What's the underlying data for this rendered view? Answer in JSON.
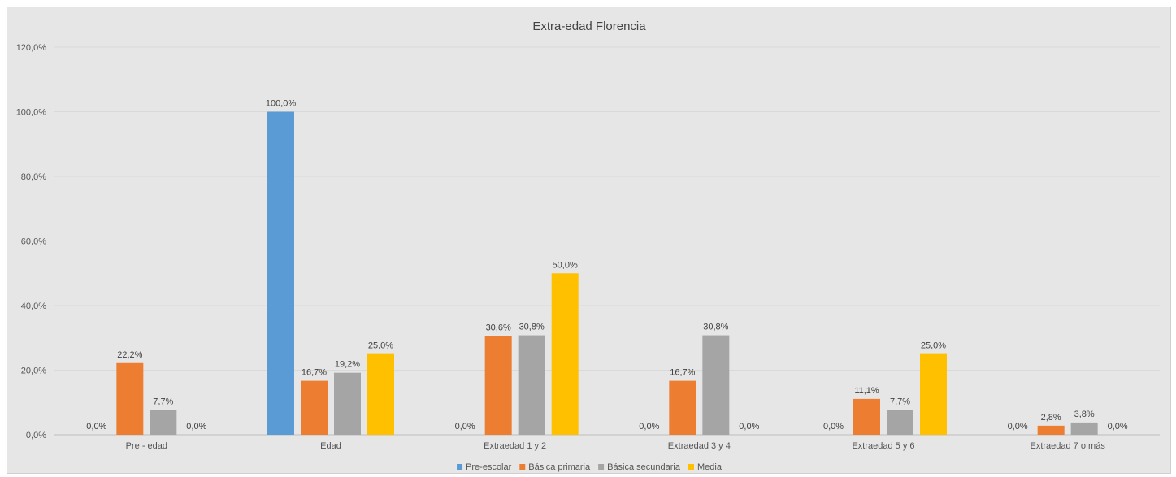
{
  "chart_data": {
    "type": "bar",
    "title": "Extra-edad Florencia",
    "xlabel": "",
    "ylabel": "",
    "ylim": [
      0,
      120
    ],
    "yticks": [
      "0,0%",
      "20,0%",
      "40,0%",
      "60,0%",
      "80,0%",
      "100,0%",
      "120,0%"
    ],
    "grid": true,
    "legend_position": "bottom",
    "categories": [
      "Pre - edad",
      "Edad",
      "Extraedad 1 y 2",
      "Extraedad 3 y 4",
      "Extraedad 5 y 6",
      "Extraedad 7 o más"
    ],
    "series": [
      {
        "name": "Pre-escolar",
        "color": "#5b9bd5",
        "values": [
          0.0,
          100.0,
          0.0,
          0.0,
          0.0,
          0.0
        ],
        "labels": [
          "0,0%",
          "100,0%",
          "0,0%",
          "0,0%",
          "0,0%",
          "0,0%"
        ]
      },
      {
        "name": "Básica primaria",
        "color": "#ed7d31",
        "values": [
          22.2,
          16.7,
          30.6,
          16.7,
          11.1,
          2.8
        ],
        "labels": [
          "22,2%",
          "16,7%",
          "30,6%",
          "16,7%",
          "11,1%",
          "2,8%"
        ]
      },
      {
        "name": "Básica secundaria",
        "color": "#a5a5a5",
        "values": [
          7.7,
          19.2,
          30.8,
          30.8,
          7.7,
          3.8
        ],
        "labels": [
          "7,7%",
          "19,2%",
          "30,8%",
          "30,8%",
          "7,7%",
          "3,8%"
        ]
      },
      {
        "name": "Media",
        "color": "#ffc000",
        "values": [
          0.0,
          25.0,
          50.0,
          0.0,
          25.0,
          0.0
        ],
        "labels": [
          "0,0%",
          "25,0%",
          "50,0%",
          "0,0%",
          "25,0%",
          "0,0%"
        ]
      }
    ]
  }
}
